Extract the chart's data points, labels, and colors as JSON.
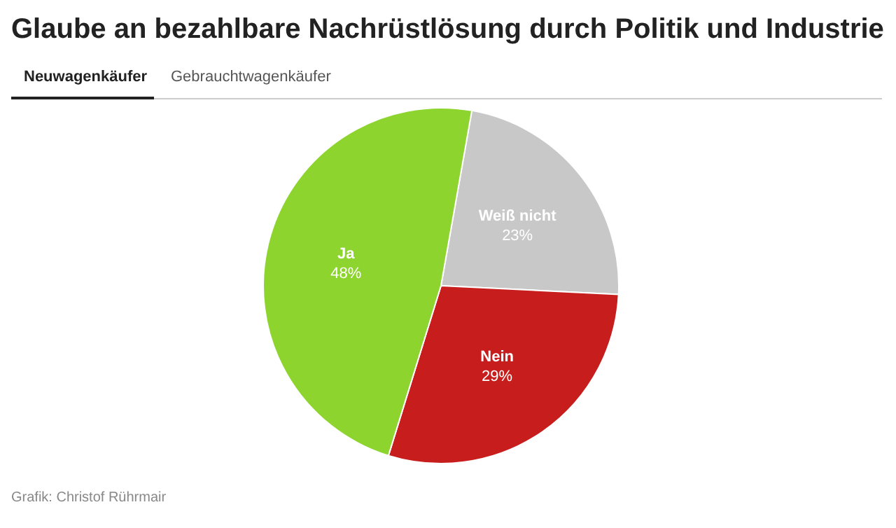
{
  "chart_data": {
    "type": "pie",
    "title": "Glaube an bezahlbare Nachrüstlösung durch Politik und Industrie",
    "categories": [
      "Weiß nicht",
      "Nein",
      "Ja"
    ],
    "values": [
      23,
      29,
      48
    ],
    "colors": [
      "#c8c8c8",
      "#c71e1d",
      "#8ed42f"
    ],
    "value_labels": [
      "23%",
      "29%",
      "48%"
    ],
    "annotations": [
      "Neuwagenkäufer",
      "Gebrauchtwagenkäufer",
      "Grafik: Christof Rührmair"
    ]
  }
}
